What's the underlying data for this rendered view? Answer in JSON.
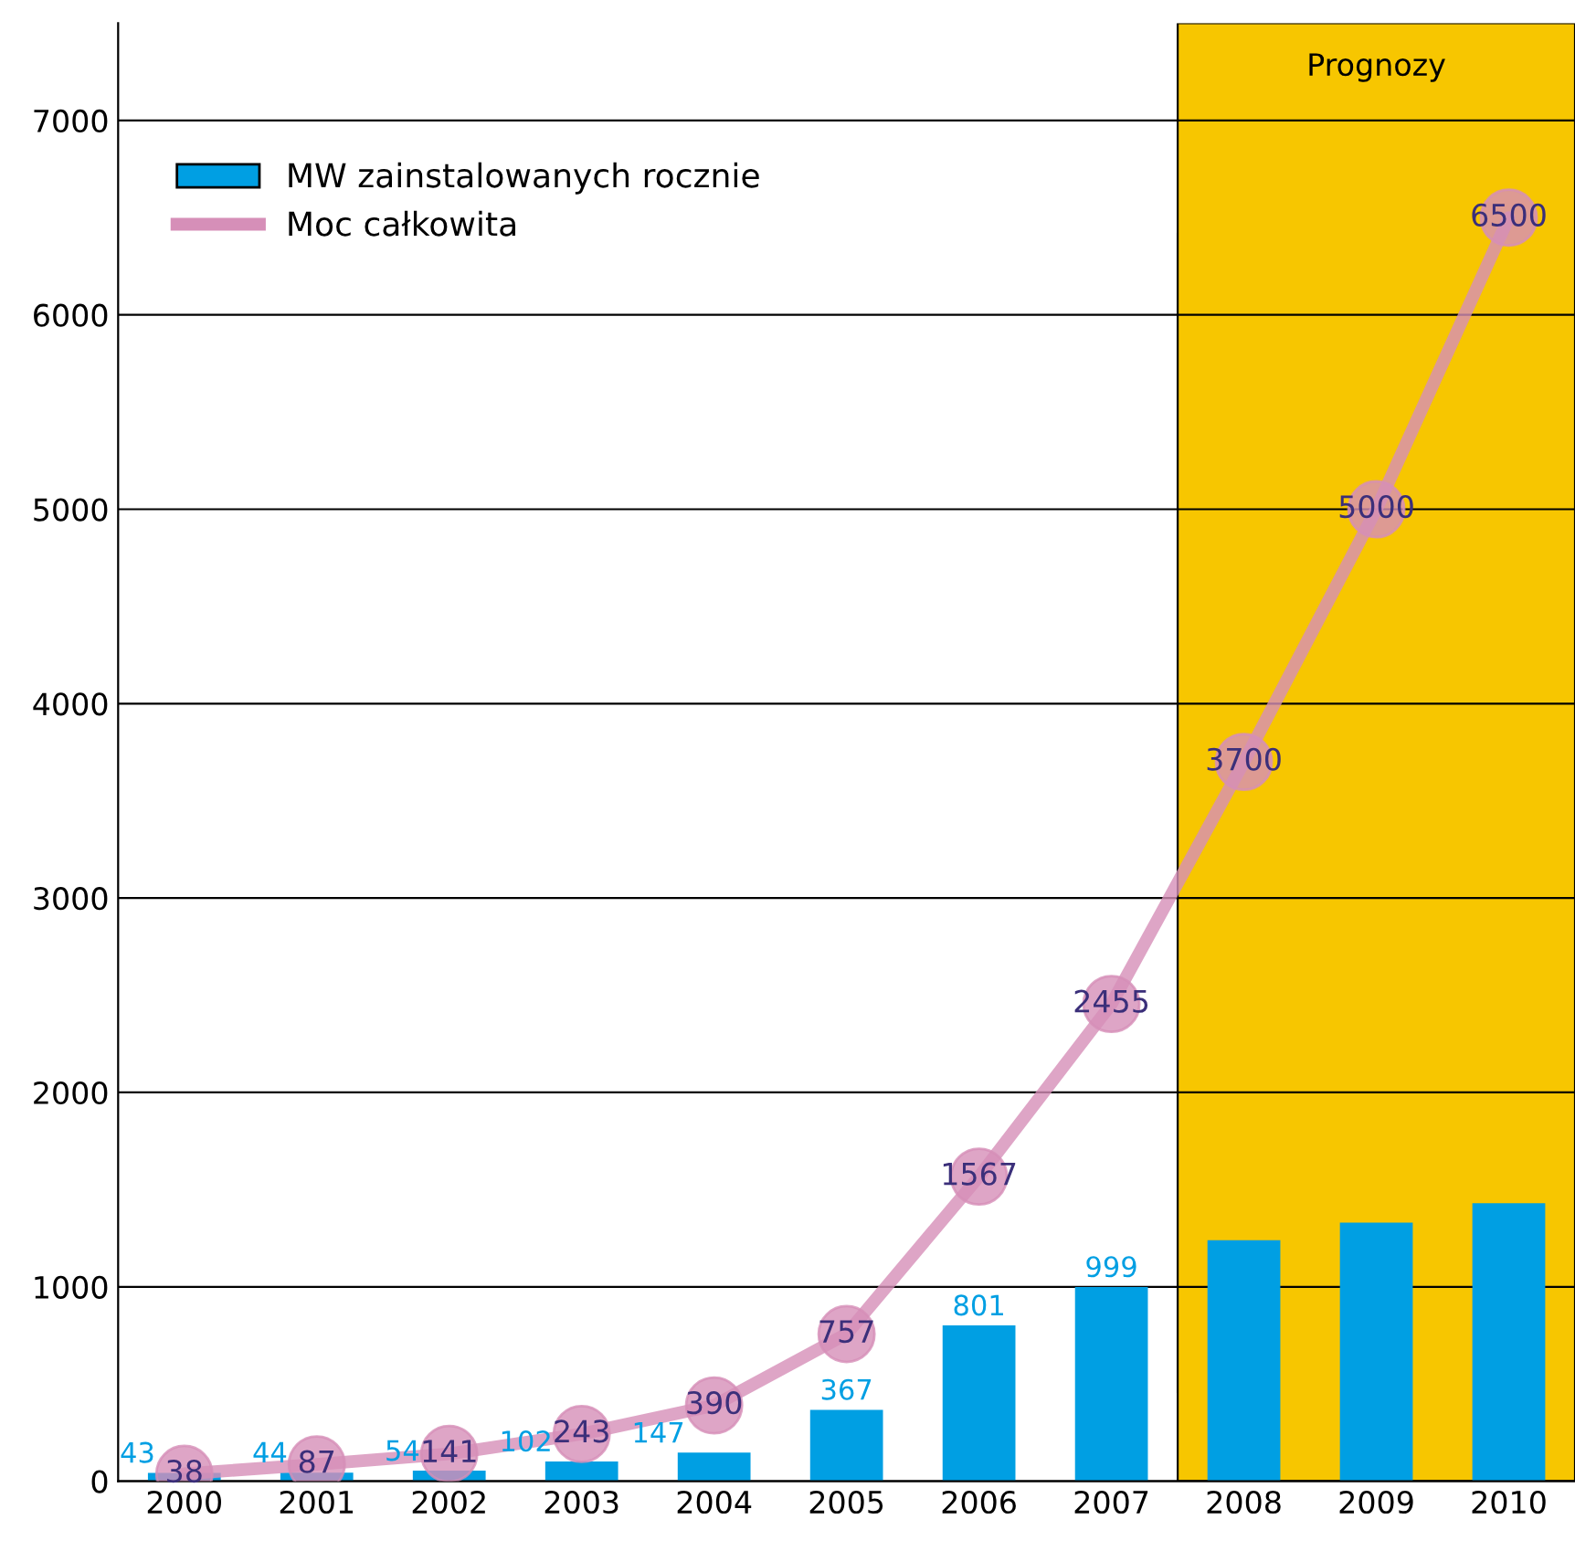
{
  "chart_data": {
    "type": "bar",
    "categories": [
      "2000",
      "2001",
      "2002",
      "2003",
      "2004",
      "2005",
      "2006",
      "2007",
      "2008",
      "2009",
      "2010"
    ],
    "series": [
      {
        "name": "MW zainstalowanych rocznie",
        "color": "#009fe3",
        "values": [
          43,
          44,
          54,
          102,
          147,
          367,
          801,
          999,
          1240,
          1330,
          1430
        ],
        "value_labels": [
          "43",
          "44",
          "54",
          "102",
          "147",
          "367",
          "801",
          "999",
          null,
          null,
          null
        ]
      },
      {
        "name": "Moc całkowita",
        "type": "line",
        "color": "#d68fb8",
        "marker": "circle",
        "values": [
          38,
          87,
          141,
          243,
          390,
          757,
          1567,
          2455,
          3700,
          5000,
          6500
        ],
        "value_labels": [
          "38",
          "87",
          "141",
          "243",
          "390",
          "757",
          "1567",
          "2455",
          "3700",
          "5000",
          "6500"
        ]
      }
    ],
    "ylim": [
      0,
      7500
    ],
    "yticks": [
      0,
      1000,
      2000,
      3000,
      4000,
      5000,
      6000,
      7000
    ],
    "grid": "y",
    "legend": "top left",
    "bands": [
      {
        "axis": "x",
        "from": "2008",
        "to": "2010",
        "label": "Prognozy",
        "color": "#f7c600"
      }
    ]
  }
}
